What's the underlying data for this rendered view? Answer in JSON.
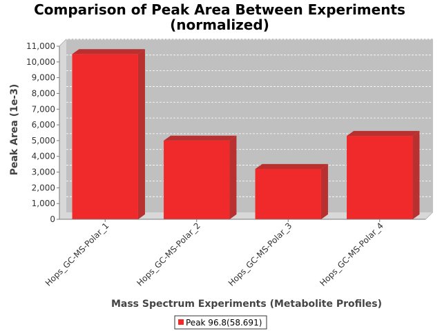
{
  "chart_data": {
    "type": "bar",
    "title": "Comparison of Peak Area Between Experiments (normalized)",
    "title_lines": [
      "Comparison of Peak Area Between Experiments",
      "(normalized)"
    ],
    "xlabel": "Mass Spectrum Experiments (Metabolite Profiles)",
    "ylabel": "Peak Area (1e-3)",
    "categories": [
      "Hops_GC-MS-Polar_1",
      "Hops_GC-MS-Polar_2",
      "Hops_GC-MS-Polar_3",
      "Hops_GC-MS-Polar_4"
    ],
    "series": [
      {
        "name": "Peak 96.8(58.691)",
        "values": [
          10500,
          5000,
          3200,
          5300
        ],
        "color": "#f02a2a"
      }
    ],
    "ylim": [
      0,
      11000
    ],
    "yticks": [
      0,
      1000,
      2000,
      3000,
      4000,
      5000,
      6000,
      7000,
      8000,
      9000,
      10000,
      11000
    ],
    "ytick_labels": [
      "0",
      "1,000",
      "2,000",
      "3,000",
      "4,000",
      "5,000",
      "6,000",
      "7,000",
      "8,000",
      "9,000",
      "10,000",
      "11,000"
    ],
    "grid": true,
    "plot_background": "#c0c0c0",
    "legend_position": "bottom"
  }
}
